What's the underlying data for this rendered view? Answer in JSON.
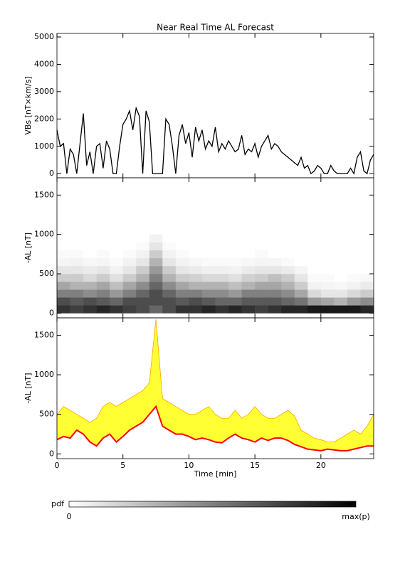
{
  "chart_data": [
    {
      "type": "line",
      "title": "Near Real Time AL Forecast",
      "ylabel": "VBs [nT×km/s]",
      "xlim": [
        0,
        24
      ],
      "ylim": [
        -150,
        5130
      ],
      "yticks": [
        0,
        1000,
        2000,
        3000,
        4000,
        5000
      ],
      "x": [
        0,
        0.25,
        0.5,
        0.75,
        1,
        1.25,
        1.5,
        1.75,
        2,
        2.25,
        2.5,
        2.75,
        3,
        3.25,
        3.5,
        3.75,
        4,
        4.25,
        4.5,
        4.75,
        5,
        5.25,
        5.5,
        5.75,
        6,
        6.25,
        6.5,
        6.75,
        7,
        7.25,
        7.5,
        7.75,
        8,
        8.25,
        8.5,
        8.75,
        9,
        9.25,
        9.5,
        9.75,
        10,
        10.25,
        10.5,
        10.75,
        11,
        11.25,
        11.5,
        11.75,
        12,
        12.25,
        12.5,
        12.75,
        13,
        13.25,
        13.5,
        13.75,
        14,
        14.25,
        14.5,
        14.75,
        15,
        15.25,
        15.5,
        15.75,
        16,
        16.25,
        16.5,
        16.75,
        17,
        17.25,
        17.5,
        17.75,
        18,
        18.25,
        18.5,
        18.75,
        19,
        19.25,
        19.5,
        19.75,
        20,
        20.25,
        20.5,
        20.75,
        21,
        21.25,
        21.5,
        21.75,
        22,
        22.25,
        22.5,
        22.75,
        23,
        23.25,
        23.5,
        23.75,
        24
      ],
      "series": [
        {
          "color": "#000000",
          "values": [
            1600,
            1000,
            1100,
            0,
            900,
            700,
            0,
            1100,
            2200,
            300,
            800,
            0,
            1000,
            1100,
            200,
            1200,
            900,
            0,
            0,
            1000,
            1800,
            2000,
            2300,
            1600,
            2400,
            2100,
            0,
            2300,
            1900,
            0,
            0,
            0,
            0,
            2000,
            1800,
            1000,
            0,
            1400,
            1800,
            1100,
            1500,
            600,
            1700,
            1200,
            1600,
            900,
            1200,
            1000,
            1700,
            800,
            1100,
            900,
            1200,
            1000,
            800,
            900,
            1400,
            700,
            900,
            800,
            1100,
            600,
            1000,
            1200,
            1400,
            900,
            1100,
            1000,
            800,
            700,
            600,
            500,
            400,
            300,
            600,
            200,
            300,
            0,
            100,
            300,
            200,
            0,
            0,
            300,
            100,
            0,
            0,
            0,
            0,
            200,
            0,
            600,
            800,
            100,
            0,
            500,
            700
          ]
        }
      ]
    },
    {
      "type": "heatmap",
      "ylabel": "-AL [nT]",
      "xlim": [
        0,
        24
      ],
      "ylim": [
        -60,
        1720
      ],
      "yticks": [
        0,
        500,
        1000,
        1500
      ],
      "x_bins": [
        0,
        1,
        2,
        3,
        4,
        5,
        6,
        7,
        8,
        9,
        10,
        11,
        12,
        13,
        14,
        15,
        16,
        17,
        18,
        19,
        20,
        21,
        22,
        23,
        24
      ],
      "y_bins": [
        0,
        100,
        200,
        300,
        400,
        500,
        600,
        700,
        800,
        900,
        1000
      ],
      "values": [
        [
          0.8,
          0.7,
          0.5,
          0.35,
          0.2,
          0.1,
          0.04,
          0.02,
          0,
          0
        ],
        [
          0.75,
          0.65,
          0.5,
          0.3,
          0.2,
          0.1,
          0.05,
          0.02,
          0,
          0
        ],
        [
          0.8,
          0.7,
          0.45,
          0.3,
          0.15,
          0.08,
          0.03,
          0,
          0,
          0
        ],
        [
          0.85,
          0.65,
          0.5,
          0.35,
          0.2,
          0.1,
          0.04,
          0.02,
          0,
          0
        ],
        [
          0.8,
          0.6,
          0.4,
          0.25,
          0.12,
          0.05,
          0.02,
          0,
          0,
          0
        ],
        [
          0.75,
          0.7,
          0.5,
          0.35,
          0.2,
          0.1,
          0.05,
          0.02,
          0,
          0
        ],
        [
          0.7,
          0.7,
          0.6,
          0.45,
          0.3,
          0.2,
          0.1,
          0.05,
          0.02,
          0
        ],
        [
          0.6,
          0.7,
          0.7,
          0.6,
          0.5,
          0.4,
          0.3,
          0.2,
          0.1,
          0.05
        ],
        [
          0.7,
          0.7,
          0.6,
          0.45,
          0.3,
          0.2,
          0.1,
          0.05,
          0.02,
          0
        ],
        [
          0.8,
          0.65,
          0.5,
          0.35,
          0.2,
          0.1,
          0.05,
          0.02,
          0,
          0
        ],
        [
          0.8,
          0.7,
          0.5,
          0.3,
          0.18,
          0.08,
          0.03,
          0,
          0,
          0
        ],
        [
          0.85,
          0.65,
          0.45,
          0.3,
          0.15,
          0.06,
          0.02,
          0,
          0,
          0
        ],
        [
          0.8,
          0.6,
          0.45,
          0.3,
          0.15,
          0.06,
          0.02,
          0,
          0,
          0
        ],
        [
          0.85,
          0.6,
          0.4,
          0.25,
          0.12,
          0.05,
          0.02,
          0,
          0,
          0
        ],
        [
          0.8,
          0.65,
          0.5,
          0.3,
          0.18,
          0.08,
          0.03,
          0,
          0,
          0
        ],
        [
          0.75,
          0.65,
          0.5,
          0.35,
          0.2,
          0.1,
          0.04,
          0.02,
          0,
          0
        ],
        [
          0.8,
          0.65,
          0.5,
          0.35,
          0.25,
          0.1,
          0.04,
          0,
          0,
          0
        ],
        [
          0.85,
          0.6,
          0.45,
          0.3,
          0.2,
          0.08,
          0.02,
          0,
          0,
          0
        ],
        [
          0.85,
          0.55,
          0.35,
          0.2,
          0.1,
          0.04,
          0,
          0,
          0,
          0
        ],
        [
          0.9,
          0.4,
          0.15,
          0.05,
          0.02,
          0,
          0,
          0,
          0,
          0
        ],
        [
          0.9,
          0.35,
          0.1,
          0.04,
          0.02,
          0,
          0,
          0,
          0,
          0
        ],
        [
          0.9,
          0.3,
          0.1,
          0.03,
          0,
          0,
          0,
          0,
          0,
          0
        ],
        [
          0.9,
          0.4,
          0.15,
          0.05,
          0.02,
          0,
          0,
          0,
          0,
          0
        ],
        [
          0.85,
          0.45,
          0.2,
          0.08,
          0.03,
          0,
          0,
          0,
          0,
          0
        ]
      ],
      "colorbar": {
        "label": "pdf",
        "min_label": "0",
        "max_label": "max(p)"
      }
    },
    {
      "type": "band",
      "ylabel": "-AL [nT]",
      "xlabel": "Time [min]",
      "xlim": [
        0,
        24
      ],
      "ylim": [
        -60,
        1720
      ],
      "yticks": [
        0,
        500,
        1000,
        1500
      ],
      "xticks": [
        0,
        5,
        10,
        15,
        20
      ],
      "x": [
        0,
        0.5,
        1,
        1.5,
        2,
        2.5,
        3,
        3.5,
        4,
        4.5,
        5,
        5.5,
        6,
        6.5,
        7,
        7.5,
        8,
        8.5,
        9,
        9.5,
        10,
        10.5,
        11,
        11.5,
        12,
        12.5,
        13,
        13.5,
        14,
        14.5,
        15,
        15.5,
        16,
        16.5,
        17,
        17.5,
        18,
        18.5,
        19,
        19.5,
        20,
        20.5,
        21,
        21.5,
        22,
        22.5,
        23,
        23.5,
        24
      ],
      "band_color": "#ffff33",
      "edge_color": "#ffa500",
      "high": [
        500,
        600,
        550,
        500,
        450,
        400,
        450,
        600,
        650,
        600,
        650,
        700,
        750,
        800,
        900,
        1700,
        700,
        650,
        600,
        550,
        500,
        500,
        550,
        600,
        500,
        450,
        450,
        550,
        450,
        500,
        600,
        500,
        450,
        450,
        500,
        550,
        480,
        300,
        250,
        200,
        180,
        150,
        150,
        200,
        250,
        300,
        250,
        350,
        500
      ],
      "series": [
        {
          "color": "#ff0000",
          "values": [
            180,
            220,
            200,
            300,
            250,
            150,
            100,
            200,
            250,
            150,
            220,
            300,
            350,
            400,
            500,
            600,
            350,
            300,
            250,
            250,
            220,
            180,
            200,
            180,
            150,
            140,
            200,
            250,
            200,
            180,
            150,
            200,
            170,
            200,
            200,
            170,
            120,
            90,
            60,
            50,
            40,
            60,
            50,
            40,
            40,
            60,
            80,
            100,
            100
          ]
        }
      ]
    }
  ]
}
